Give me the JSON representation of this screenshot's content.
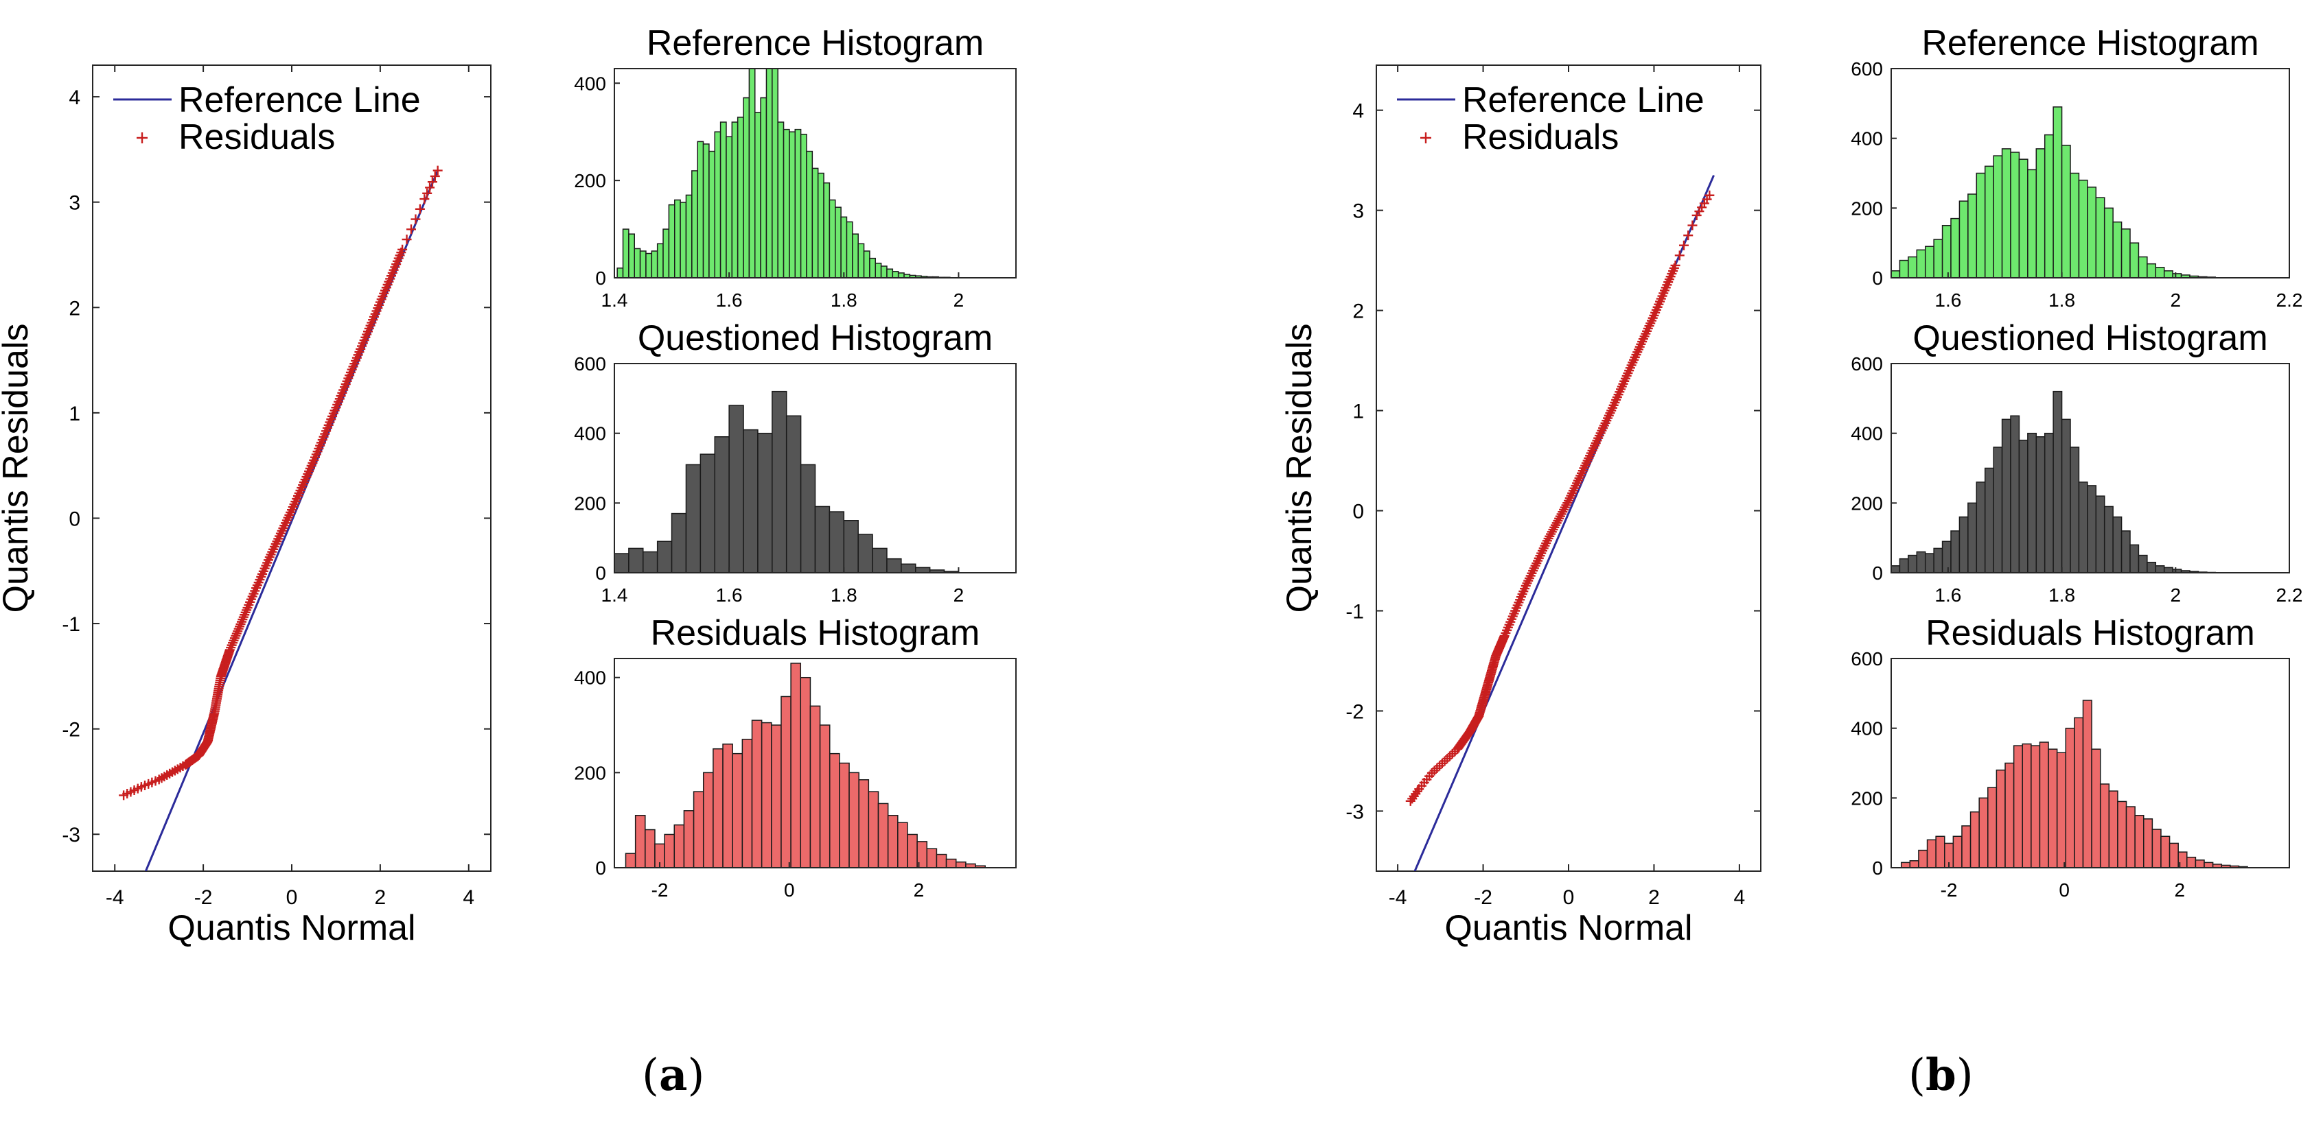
{
  "figure": {
    "panel_labels": [
      "a",
      "b"
    ]
  },
  "colors": {
    "reference_line": "#2b2b9a",
    "residual_marker": "#c81e1e",
    "reference_hist": "#6ee86e",
    "questioned_hist": "#555555",
    "residuals_hist": "#ec6a6a",
    "bar_edge": "#1a1a1a",
    "axis": "#262626"
  },
  "chart_data": [
    {
      "panel": "a",
      "type": "scatter",
      "title": "",
      "xlabel": "Quantis Normal",
      "ylabel": "Quantis Residuals",
      "xlim": [
        -4.5,
        4.5
      ],
      "ylim": [
        -3.35,
        4.3
      ],
      "xticks": [
        -4,
        -2,
        0,
        2,
        4
      ],
      "yticks": [
        -3,
        -2,
        -1,
        0,
        1,
        2,
        3,
        4
      ],
      "legend": {
        "location": "top-left",
        "entries": [
          "Reference Line",
          "Residuals"
        ]
      },
      "reference_line": {
        "x": [
          -3.3,
          3.3
        ],
        "y": [
          -3.35,
          3.3
        ]
      },
      "residual_curve": {
        "x": [
          -3.8,
          -3.4,
          -3.0,
          -2.7,
          -2.4,
          -2.1,
          -1.9,
          -1.75,
          -1.6,
          -1.4,
          -1.0,
          -0.5,
          0.0,
          0.5,
          1.0,
          1.5,
          2.0,
          2.5,
          3.0,
          3.3
        ],
        "y": [
          -2.63,
          -2.55,
          -2.48,
          -2.41,
          -2.34,
          -2.25,
          -2.12,
          -1.85,
          -1.5,
          -1.25,
          -0.85,
          -0.37,
          0.08,
          0.55,
          1.05,
          1.55,
          2.05,
          2.55,
          3.03,
          3.3
        ]
      }
    },
    {
      "panel": "a",
      "type": "bar",
      "title": "Reference Histogram",
      "xlim": [
        1.4,
        2.1
      ],
      "xticks": [
        1.4,
        1.6,
        1.8,
        2
      ],
      "ylim": [
        0,
        430
      ],
      "yticks": [
        0,
        200,
        400
      ],
      "x": [
        1.41,
        1.42,
        1.43,
        1.44,
        1.45,
        1.46,
        1.47,
        1.48,
        1.49,
        1.5,
        1.51,
        1.52,
        1.53,
        1.54,
        1.55,
        1.56,
        1.57,
        1.58,
        1.59,
        1.6,
        1.61,
        1.62,
        1.63,
        1.64,
        1.65,
        1.66,
        1.67,
        1.68,
        1.69,
        1.7,
        1.71,
        1.72,
        1.73,
        1.74,
        1.75,
        1.76,
        1.77,
        1.78,
        1.79,
        1.8,
        1.81,
        1.82,
        1.83,
        1.84,
        1.85,
        1.86,
        1.87,
        1.88,
        1.89,
        1.9,
        1.91,
        1.92,
        1.93,
        1.94,
        1.95,
        1.96,
        1.97,
        1.98
      ],
      "values": [
        20,
        100,
        90,
        60,
        55,
        50,
        55,
        70,
        100,
        150,
        160,
        155,
        170,
        220,
        280,
        275,
        260,
        300,
        320,
        290,
        320,
        330,
        370,
        430,
        340,
        370,
        430,
        430,
        320,
        305,
        300,
        305,
        295,
        260,
        225,
        215,
        195,
        160,
        145,
        125,
        115,
        90,
        70,
        55,
        40,
        30,
        24,
        18,
        13,
        10,
        7,
        5,
        4,
        3,
        2,
        2,
        1,
        1
      ],
      "bar_width": 0.01
    },
    {
      "panel": "a",
      "type": "bar",
      "title": "Questioned Histogram",
      "xlim": [
        1.4,
        2.1
      ],
      "xticks": [
        1.4,
        1.6,
        1.8,
        2
      ],
      "ylim": [
        0,
        600
      ],
      "yticks": [
        0,
        200,
        400,
        600
      ],
      "x": [
        1.4125,
        1.4375,
        1.4625,
        1.4875,
        1.5125,
        1.5375,
        1.5625,
        1.5875,
        1.6125,
        1.6375,
        1.6625,
        1.6875,
        1.7125,
        1.7375,
        1.7625,
        1.7875,
        1.8125,
        1.8375,
        1.8625,
        1.8875,
        1.9125,
        1.9375,
        1.9625,
        1.9875
      ],
      "values": [
        55,
        70,
        60,
        90,
        170,
        310,
        340,
        390,
        480,
        410,
        400,
        520,
        450,
        310,
        190,
        175,
        150,
        110,
        70,
        40,
        25,
        15,
        8,
        4
      ],
      "bar_width": 0.025
    },
    {
      "panel": "a",
      "type": "bar",
      "title": "Residuals Histogram",
      "xlim": [
        -2.7,
        3.5
      ],
      "xticks": [
        -2,
        0,
        2
      ],
      "ylim": [
        0,
        440
      ],
      "yticks": [
        0,
        200,
        400
      ],
      "x": [
        -2.45,
        -2.3,
        -2.15,
        -2.0,
        -1.85,
        -1.7,
        -1.55,
        -1.4,
        -1.25,
        -1.1,
        -0.95,
        -0.8,
        -0.65,
        -0.5,
        -0.35,
        -0.2,
        -0.05,
        0.1,
        0.25,
        0.4,
        0.55,
        0.7,
        0.85,
        1.0,
        1.15,
        1.3,
        1.45,
        1.6,
        1.75,
        1.9,
        2.05,
        2.2,
        2.35,
        2.5,
        2.65,
        2.8,
        2.95
      ],
      "values": [
        30,
        110,
        80,
        50,
        70,
        90,
        120,
        160,
        200,
        250,
        260,
        240,
        270,
        310,
        305,
        300,
        360,
        430,
        400,
        340,
        300,
        240,
        220,
        200,
        185,
        160,
        135,
        110,
        95,
        70,
        55,
        40,
        28,
        18,
        12,
        8,
        4
      ],
      "bar_width": 0.15
    },
    {
      "panel": "b",
      "type": "scatter",
      "title": "",
      "xlabel": "Quantis Normal",
      "ylabel": "Quantis Residuals",
      "xlim": [
        -4.5,
        4.5
      ],
      "ylim": [
        -3.6,
        4.45
      ],
      "xticks": [
        -4,
        -2,
        0,
        2,
        4
      ],
      "yticks": [
        -3,
        -2,
        -1,
        0,
        1,
        2,
        3,
        4
      ],
      "legend": {
        "location": "top-left",
        "entries": [
          "Reference Line",
          "Residuals"
        ]
      },
      "reference_line": {
        "x": [
          -3.6,
          3.4
        ],
        "y": [
          -3.6,
          3.35
        ]
      },
      "residual_curve": {
        "x": [
          -3.7,
          -3.5,
          -3.2,
          -2.9,
          -2.6,
          -2.3,
          -2.1,
          -1.9,
          -1.7,
          -1.5,
          -1.0,
          -0.5,
          0.0,
          0.5,
          1.0,
          1.5,
          2.0,
          2.5,
          3.0,
          3.3
        ],
        "y": [
          -2.9,
          -2.78,
          -2.62,
          -2.5,
          -2.38,
          -2.2,
          -2.05,
          -1.75,
          -1.45,
          -1.25,
          -0.75,
          -0.3,
          0.1,
          0.55,
          1.0,
          1.48,
          1.95,
          2.45,
          2.95,
          3.15
        ]
      }
    },
    {
      "panel": "b",
      "type": "bar",
      "title": "Reference Histogram",
      "xlim": [
        1.5,
        2.2
      ],
      "xticks": [
        1.6,
        1.8,
        2,
        2.2
      ],
      "ylim": [
        0,
        600
      ],
      "yticks": [
        0,
        200,
        400,
        600
      ],
      "x": [
        1.5075,
        1.5225,
        1.5375,
        1.5525,
        1.5675,
        1.5825,
        1.5975,
        1.6125,
        1.6275,
        1.6425,
        1.6575,
        1.6725,
        1.6875,
        1.7025,
        1.7175,
        1.7325,
        1.7475,
        1.7625,
        1.7775,
        1.7925,
        1.8075,
        1.8225,
        1.8375,
        1.8525,
        1.8675,
        1.8825,
        1.8975,
        1.9125,
        1.9275,
        1.9425,
        1.9575,
        1.9725,
        1.9875,
        2.0025,
        2.0175,
        2.0325,
        2.0475,
        2.0625
      ],
      "values": [
        20,
        50,
        60,
        80,
        90,
        110,
        150,
        170,
        220,
        240,
        300,
        320,
        350,
        370,
        360,
        340,
        310,
        370,
        410,
        490,
        380,
        300,
        280,
        260,
        230,
        200,
        160,
        140,
        100,
        60,
        40,
        30,
        20,
        12,
        8,
        5,
        3,
        2
      ],
      "bar_width": 0.015
    },
    {
      "panel": "b",
      "type": "bar",
      "title": "Questioned Histogram",
      "xlim": [
        1.5,
        2.2
      ],
      "xticks": [
        1.6,
        1.8,
        2,
        2.2
      ],
      "ylim": [
        0,
        600
      ],
      "yticks": [
        0,
        200,
        400,
        600
      ],
      "x": [
        1.5075,
        1.5225,
        1.5375,
        1.5525,
        1.5675,
        1.5825,
        1.5975,
        1.6125,
        1.6275,
        1.6425,
        1.6575,
        1.6725,
        1.6875,
        1.7025,
        1.7175,
        1.7325,
        1.7475,
        1.7625,
        1.7775,
        1.7925,
        1.8075,
        1.8225,
        1.8375,
        1.8525,
        1.8675,
        1.8825,
        1.8975,
        1.9125,
        1.9275,
        1.9425,
        1.9575,
        1.9725,
        1.9875,
        2.0025,
        2.0175,
        2.0325,
        2.0475,
        2.0625
      ],
      "values": [
        20,
        40,
        50,
        60,
        55,
        70,
        90,
        120,
        160,
        200,
        260,
        300,
        360,
        440,
        450,
        380,
        400,
        390,
        400,
        520,
        440,
        360,
        260,
        250,
        220,
        190,
        160,
        120,
        80,
        50,
        30,
        20,
        15,
        10,
        6,
        4,
        2,
        1
      ],
      "bar_width": 0.015
    },
    {
      "panel": "b",
      "type": "bar",
      "title": "Residuals Histogram",
      "xlim": [
        -3.0,
        3.9
      ],
      "xticks": [
        -2,
        0,
        2
      ],
      "ylim": [
        0,
        600
      ],
      "yticks": [
        0,
        200,
        400,
        600
      ],
      "x": [
        -2.75,
        -2.6,
        -2.45,
        -2.3,
        -2.15,
        -2.0,
        -1.85,
        -1.7,
        -1.55,
        -1.4,
        -1.25,
        -1.1,
        -0.95,
        -0.8,
        -0.65,
        -0.5,
        -0.35,
        -0.2,
        -0.05,
        0.1,
        0.25,
        0.4,
        0.55,
        0.7,
        0.85,
        1.0,
        1.15,
        1.3,
        1.45,
        1.6,
        1.75,
        1.9,
        2.05,
        2.2,
        2.35,
        2.5,
        2.65,
        2.8,
        2.95,
        3.1
      ],
      "values": [
        15,
        20,
        50,
        80,
        90,
        70,
        90,
        120,
        160,
        200,
        230,
        280,
        300,
        350,
        355,
        350,
        360,
        340,
        330,
        400,
        430,
        480,
        340,
        240,
        220,
        190,
        175,
        150,
        140,
        110,
        90,
        70,
        45,
        30,
        22,
        15,
        10,
        7,
        5,
        3
      ],
      "bar_width": 0.15
    }
  ]
}
